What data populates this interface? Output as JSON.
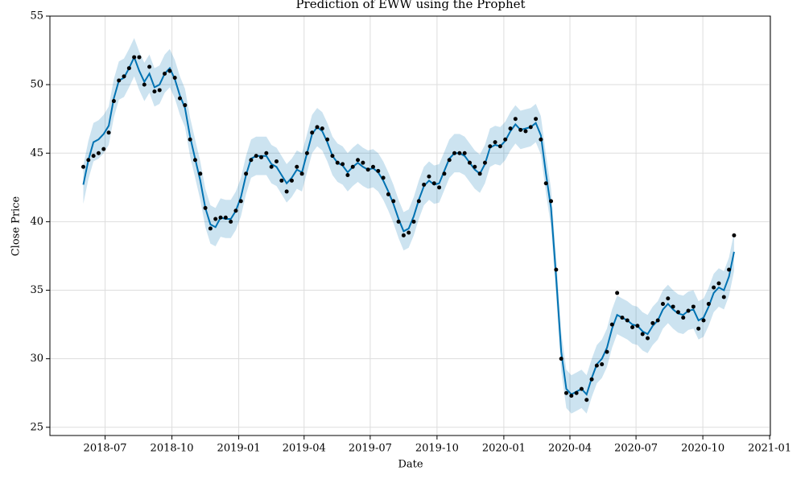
{
  "chart_data": {
    "type": "forecast",
    "title": "Prediction of EWW  using the Prophet",
    "xlabel": "Date",
    "ylabel": "Close Price",
    "x": [
      "2018-06-01",
      "2018-06-08",
      "2018-06-15",
      "2018-06-22",
      "2018-06-29",
      "2018-07-06",
      "2018-07-13",
      "2018-07-20",
      "2018-07-27",
      "2018-08-03",
      "2018-08-10",
      "2018-08-17",
      "2018-08-24",
      "2018-08-31",
      "2018-09-07",
      "2018-09-14",
      "2018-09-21",
      "2018-09-28",
      "2018-10-05",
      "2018-10-12",
      "2018-10-19",
      "2018-10-26",
      "2018-11-02",
      "2018-11-09",
      "2018-11-16",
      "2018-11-23",
      "2018-11-30",
      "2018-12-07",
      "2018-12-14",
      "2018-12-21",
      "2018-12-28",
      "2019-01-04",
      "2019-01-11",
      "2019-01-18",
      "2019-01-25",
      "2019-02-01",
      "2019-02-08",
      "2019-02-15",
      "2019-02-22",
      "2019-03-01",
      "2019-03-08",
      "2019-03-15",
      "2019-03-22",
      "2019-03-29",
      "2019-04-05",
      "2019-04-12",
      "2019-04-19",
      "2019-04-26",
      "2019-05-03",
      "2019-05-10",
      "2019-05-17",
      "2019-05-24",
      "2019-05-31",
      "2019-06-07",
      "2019-06-14",
      "2019-06-21",
      "2019-06-28",
      "2019-07-05",
      "2019-07-12",
      "2019-07-19",
      "2019-07-26",
      "2019-08-02",
      "2019-08-09",
      "2019-08-16",
      "2019-08-23",
      "2019-08-30",
      "2019-09-06",
      "2019-09-13",
      "2019-09-20",
      "2019-09-27",
      "2019-10-04",
      "2019-10-11",
      "2019-10-18",
      "2019-10-25",
      "2019-11-01",
      "2019-11-08",
      "2019-11-15",
      "2019-11-22",
      "2019-11-29",
      "2019-12-06",
      "2019-12-13",
      "2019-12-20",
      "2019-12-27",
      "2020-01-03",
      "2020-01-10",
      "2020-01-17",
      "2020-01-24",
      "2020-01-31",
      "2020-02-07",
      "2020-02-14",
      "2020-02-21",
      "2020-02-28",
      "2020-03-06",
      "2020-03-13",
      "2020-03-20",
      "2020-03-27",
      "2020-04-03",
      "2020-04-10",
      "2020-04-17",
      "2020-04-24",
      "2020-05-01",
      "2020-05-08",
      "2020-05-15",
      "2020-05-22",
      "2020-05-29",
      "2020-06-05",
      "2020-06-12",
      "2020-06-19",
      "2020-06-26",
      "2020-07-03",
      "2020-07-10",
      "2020-07-17",
      "2020-07-24",
      "2020-07-31",
      "2020-08-07",
      "2020-08-14",
      "2020-08-21",
      "2020-08-28",
      "2020-09-04",
      "2020-09-11",
      "2020-09-18",
      "2020-09-25",
      "2020-10-02",
      "2020-10-09",
      "2020-10-16",
      "2020-10-23",
      "2020-10-30",
      "2020-11-06",
      "2020-11-13"
    ],
    "actual": [
      44.0,
      44.5,
      44.8,
      45.0,
      45.3,
      46.5,
      48.8,
      50.3,
      50.6,
      51.2,
      52.0,
      52.0,
      50.0,
      51.3,
      49.5,
      49.6,
      50.8,
      51.0,
      50.5,
      49.0,
      48.5,
      46.0,
      44.5,
      43.5,
      41.0,
      39.5,
      40.2,
      40.3,
      40.3,
      40.0,
      40.8,
      41.5,
      43.5,
      44.5,
      44.8,
      44.7,
      45.0,
      44.0,
      44.4,
      43.0,
      42.2,
      43.0,
      44.0,
      43.5,
      45.0,
      46.5,
      46.9,
      46.8,
      46.0,
      44.8,
      44.3,
      44.2,
      43.4,
      44.0,
      44.5,
      44.3,
      43.8,
      44.0,
      43.7,
      43.2,
      42.0,
      41.5,
      40.0,
      39.0,
      39.2,
      40.0,
      41.5,
      42.7,
      43.3,
      42.8,
      42.5,
      43.5,
      44.5,
      45.0,
      45.0,
      45.0,
      44.3,
      44.0,
      43.5,
      44.3,
      45.5,
      45.8,
      45.5,
      46.0,
      46.8,
      47.5,
      46.7,
      46.6,
      46.9,
      47.5,
      46.0,
      42.8,
      41.5,
      36.5,
      30.0,
      27.5,
      27.3,
      27.5,
      27.8,
      27.0,
      28.5,
      29.5,
      29.6,
      30.5,
      32.5,
      34.8,
      33.0,
      32.8,
      32.3,
      32.4,
      31.8,
      31.5,
      32.6,
      32.8,
      34.0,
      34.4,
      33.8,
      33.4,
      33.0,
      33.5,
      33.8,
      32.2,
      32.8,
      34.0,
      35.2,
      35.5,
      34.5,
      36.5,
      39.0
    ],
    "yhat": [
      42.7,
      44.5,
      45.8,
      46.0,
      46.4,
      47.0,
      49.0,
      50.3,
      50.5,
      51.2,
      52.0,
      51.0,
      50.2,
      50.8,
      49.8,
      50.0,
      50.8,
      51.2,
      50.4,
      49.2,
      48.3,
      46.2,
      44.6,
      43.0,
      41.0,
      39.8,
      39.6,
      40.3,
      40.2,
      40.2,
      40.8,
      41.8,
      43.4,
      44.6,
      44.8,
      44.8,
      44.8,
      44.2,
      44.0,
      43.4,
      42.8,
      43.2,
      43.8,
      43.6,
      45.0,
      46.4,
      46.9,
      46.6,
      45.8,
      44.8,
      44.3,
      44.1,
      43.6,
      44.0,
      44.3,
      44.0,
      43.8,
      43.9,
      43.6,
      43.0,
      42.2,
      41.3,
      40.2,
      39.3,
      39.5,
      40.4,
      41.6,
      42.6,
      43.0,
      42.7,
      42.8,
      43.7,
      44.6,
      45.0,
      45.0,
      44.8,
      44.3,
      43.8,
      43.5,
      44.2,
      45.4,
      45.6,
      45.5,
      45.9,
      46.6,
      47.1,
      46.7,
      46.8,
      46.9,
      47.2,
      46.3,
      43.5,
      41.0,
      36.0,
      30.5,
      27.8,
      27.4,
      27.6,
      27.8,
      27.4,
      28.6,
      29.6,
      30.0,
      30.8,
      32.2,
      33.2,
      33.0,
      32.8,
      32.5,
      32.4,
      32.0,
      31.8,
      32.4,
      32.8,
      33.6,
      34.0,
      33.6,
      33.3,
      33.2,
      33.5,
      33.6,
      32.8,
      33.0,
      33.8,
      34.8,
      35.2,
      35.0,
      36.0,
      37.8
    ],
    "yhat_lower": [
      41.3,
      43.1,
      44.4,
      44.6,
      45.0,
      45.6,
      47.6,
      48.9,
      49.1,
      49.8,
      50.6,
      49.6,
      48.8,
      49.4,
      48.4,
      48.6,
      49.4,
      49.8,
      49.0,
      47.8,
      46.9,
      44.8,
      43.2,
      41.6,
      39.6,
      38.4,
      38.2,
      38.9,
      38.8,
      38.8,
      39.4,
      40.4,
      42.0,
      43.2,
      43.4,
      43.4,
      43.4,
      42.8,
      42.6,
      42.0,
      41.4,
      41.8,
      42.4,
      42.2,
      43.6,
      45.0,
      45.5,
      45.2,
      44.4,
      43.4,
      42.9,
      42.7,
      42.2,
      42.6,
      42.9,
      42.6,
      42.4,
      42.5,
      42.2,
      41.6,
      40.8,
      39.9,
      38.8,
      37.9,
      38.1,
      39.0,
      40.2,
      41.2,
      41.6,
      41.3,
      41.4,
      42.3,
      43.2,
      43.6,
      43.6,
      43.4,
      42.9,
      42.4,
      42.1,
      42.8,
      44.0,
      44.2,
      44.1,
      44.5,
      45.2,
      45.7,
      45.3,
      45.4,
      45.5,
      45.8,
      44.9,
      42.1,
      39.6,
      34.6,
      29.1,
      26.4,
      26.0,
      26.2,
      26.4,
      26.0,
      27.2,
      28.2,
      28.6,
      29.4,
      30.8,
      31.8,
      31.6,
      31.4,
      31.1,
      31.0,
      30.6,
      30.4,
      31.0,
      31.4,
      32.2,
      32.6,
      32.2,
      31.9,
      31.8,
      32.1,
      32.2,
      31.4,
      31.6,
      32.4,
      33.4,
      33.8,
      33.6,
      34.6,
      36.4
    ],
    "yhat_upper": [
      44.1,
      45.9,
      47.2,
      47.4,
      47.8,
      48.4,
      50.4,
      51.7,
      51.9,
      52.6,
      53.4,
      52.4,
      51.6,
      52.2,
      51.2,
      51.4,
      52.2,
      52.6,
      51.8,
      50.6,
      49.7,
      47.6,
      46.0,
      44.4,
      42.4,
      41.2,
      41.0,
      41.7,
      41.6,
      41.6,
      42.2,
      43.2,
      44.8,
      46.0,
      46.2,
      46.2,
      46.2,
      45.6,
      45.4,
      44.8,
      44.2,
      44.6,
      45.2,
      45.0,
      46.4,
      47.8,
      48.3,
      48.0,
      47.2,
      46.2,
      45.7,
      45.5,
      45.0,
      45.4,
      45.7,
      45.4,
      45.2,
      45.3,
      45.0,
      44.4,
      43.6,
      42.7,
      41.6,
      40.7,
      40.9,
      41.8,
      43.0,
      44.0,
      44.4,
      44.1,
      44.2,
      45.1,
      46.0,
      46.4,
      46.4,
      46.2,
      45.7,
      45.2,
      44.9,
      45.6,
      46.8,
      47.0,
      46.9,
      47.3,
      48.0,
      48.5,
      48.1,
      48.2,
      48.3,
      48.6,
      47.7,
      44.9,
      42.4,
      37.4,
      31.9,
      29.2,
      28.8,
      29.0,
      29.2,
      28.8,
      30.0,
      31.0,
      31.4,
      32.2,
      33.6,
      34.6,
      34.4,
      34.2,
      33.9,
      33.8,
      33.4,
      33.2,
      33.8,
      34.2,
      35.0,
      35.4,
      35.0,
      34.7,
      34.6,
      34.9,
      35.0,
      34.2,
      34.4,
      35.2,
      36.2,
      36.6,
      36.4,
      37.4,
      39.2
    ],
    "point_color": "#000000",
    "line_color": "#0072B2",
    "band_color": "#0072B2",
    "xlim": [
      "2018-04-16",
      "2021-01-02"
    ],
    "xticks": [
      {
        "value": "2018-07-01",
        "label": "2018-07"
      },
      {
        "value": "2018-10-01",
        "label": "2018-10"
      },
      {
        "value": "2019-01-01",
        "label": "2019-01"
      },
      {
        "value": "2019-04-01",
        "label": "2019-04"
      },
      {
        "value": "2019-07-01",
        "label": "2019-07"
      },
      {
        "value": "2019-10-01",
        "label": "2019-10"
      },
      {
        "value": "2020-01-01",
        "label": "2020-01"
      },
      {
        "value": "2020-04-01",
        "label": "2020-04"
      },
      {
        "value": "2020-07-01",
        "label": "2020-07"
      },
      {
        "value": "2020-10-01",
        "label": "2020-10"
      },
      {
        "value": "2021-01-01",
        "label": "2021-01"
      }
    ],
    "ylim": [
      24.4,
      55
    ],
    "yticks": [
      25,
      30,
      35,
      40,
      45,
      50,
      55
    ],
    "grid": true
  }
}
